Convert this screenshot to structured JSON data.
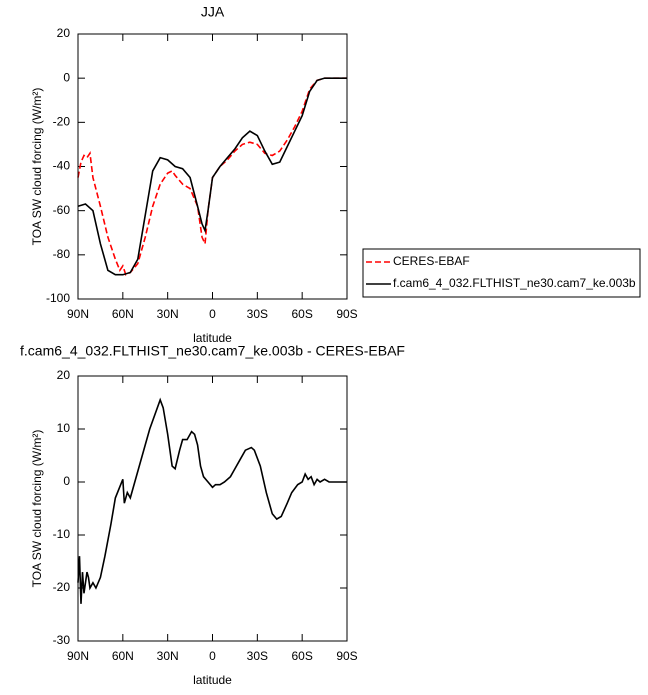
{
  "chart_data": [
    {
      "type": "line",
      "title": "JJA",
      "xlabel": "latitude",
      "ylabel": "TOA SW cloud forcing (W/m²)",
      "xlim": [
        90,
        -90
      ],
      "xticks": [
        {
          "value": 90,
          "label": "90N"
        },
        {
          "value": 60,
          "label": "60N"
        },
        {
          "value": 30,
          "label": "30N"
        },
        0,
        {
          "value": -30,
          "label": "30S"
        },
        {
          "value": -60,
          "label": "60S"
        },
        {
          "value": -90,
          "label": "90S"
        }
      ],
      "ylim": [
        -100,
        20
      ],
      "yticks": [
        -100,
        -80,
        -60,
        -40,
        -20,
        0,
        20
      ],
      "legend": "outside right",
      "series": [
        {
          "name": "CERES-EBAF",
          "color": "#ff0000",
          "dash": true,
          "x": [
            90,
            88,
            86,
            84,
            82,
            80,
            75,
            70,
            65,
            62,
            60,
            58,
            55,
            50,
            45,
            40,
            35,
            30,
            27,
            25,
            20,
            15,
            10,
            7,
            5,
            3,
            0,
            -5,
            -10,
            -15,
            -20,
            -25,
            -30,
            -35,
            -40,
            -45,
            -50,
            -55,
            -60,
            -65,
            -70,
            -75,
            -80,
            -90
          ],
          "values": [
            -45,
            -38,
            -35,
            -36,
            -34,
            -45,
            -58,
            -72,
            -82,
            -87,
            -85,
            -89,
            -88,
            -84,
            -72,
            -58,
            -48,
            -43,
            -42,
            -44,
            -48,
            -50,
            -58,
            -72,
            -75,
            -60,
            -45,
            -40,
            -37,
            -33,
            -30,
            -29,
            -30,
            -34,
            -35,
            -33,
            -28,
            -22,
            -15,
            -5,
            -1,
            0,
            0,
            0
          ]
        },
        {
          "name": "f.cam6_4_032.FLTHIST_ne30.cam7_ke.003b",
          "color": "#000000",
          "dash": false,
          "x": [
            90,
            85,
            80,
            75,
            70,
            65,
            60,
            55,
            50,
            45,
            40,
            35,
            30,
            25,
            20,
            15,
            10,
            7,
            5,
            3,
            0,
            -5,
            -10,
            -15,
            -20,
            -25,
            -30,
            -35,
            -40,
            -45,
            -50,
            -55,
            -60,
            -65,
            -70,
            -75,
            -80,
            -85,
            -90
          ],
          "values": [
            -58,
            -57,
            -60,
            -75,
            -87,
            -89,
            -89,
            -88,
            -82,
            -62,
            -42,
            -36,
            -37,
            -40,
            -41,
            -45,
            -58,
            -66,
            -69,
            -60,
            -45,
            -40,
            -36,
            -32,
            -27,
            -24,
            -26,
            -33,
            -39,
            -38,
            -31,
            -24,
            -17,
            -6,
            -1,
            0,
            0,
            0,
            0
          ]
        }
      ]
    },
    {
      "type": "line",
      "title": "f.cam6_4_032.FLTHIST_ne30.cam7_ke.003b - CERES-EBAF",
      "xlabel": "latitude",
      "ylabel": "TOA SW cloud forcing (W/m²)",
      "xlim": [
        90,
        -90
      ],
      "xticks": [
        {
          "value": 90,
          "label": "90N"
        },
        {
          "value": 60,
          "label": "60N"
        },
        {
          "value": 30,
          "label": "30N"
        },
        0,
        {
          "value": -30,
          "label": "30S"
        },
        {
          "value": -60,
          "label": "60S"
        },
        {
          "value": -90,
          "label": "90S"
        }
      ],
      "ylim": [
        -30,
        20
      ],
      "yticks": [
        -30,
        -20,
        -10,
        0,
        10,
        20
      ],
      "series": [
        {
          "color": "#000000",
          "dash": false,
          "x": [
            90,
            89,
            88,
            87,
            86,
            84,
            83,
            82,
            80,
            78,
            75,
            72,
            68,
            65,
            60,
            59,
            57,
            55,
            50,
            45,
            42,
            35,
            33,
            30,
            27,
            25,
            22,
            20,
            17,
            14,
            12,
            10,
            8,
            6,
            3,
            0,
            -2,
            -5,
            -8,
            -12,
            -15,
            -18,
            -22,
            -26,
            -28,
            -32,
            -36,
            -40,
            -43,
            -46,
            -50,
            -53,
            -57,
            -60,
            -62,
            -64,
            -66,
            -68,
            -70,
            -72,
            -75,
            -78,
            -90
          ],
          "values": [
            -19,
            -14,
            -23,
            -17,
            -21,
            -17,
            -18,
            -20,
            -19,
            -20,
            -18,
            -14,
            -8,
            -3,
            0.5,
            -4,
            -2,
            -3,
            2,
            7,
            10,
            15.5,
            14,
            9,
            3,
            2.5,
            6,
            8,
            8,
            9.5,
            9,
            7,
            3,
            1,
            0,
            -1,
            -0.5,
            -0.5,
            0,
            1,
            2.5,
            4,
            6,
            6.5,
            6,
            3,
            -2,
            -6,
            -7,
            -6.5,
            -4,
            -2,
            -0.5,
            0,
            1.5,
            0.5,
            1,
            -0.5,
            0.5,
            0,
            0.5,
            0,
            0
          ]
        }
      ]
    }
  ]
}
